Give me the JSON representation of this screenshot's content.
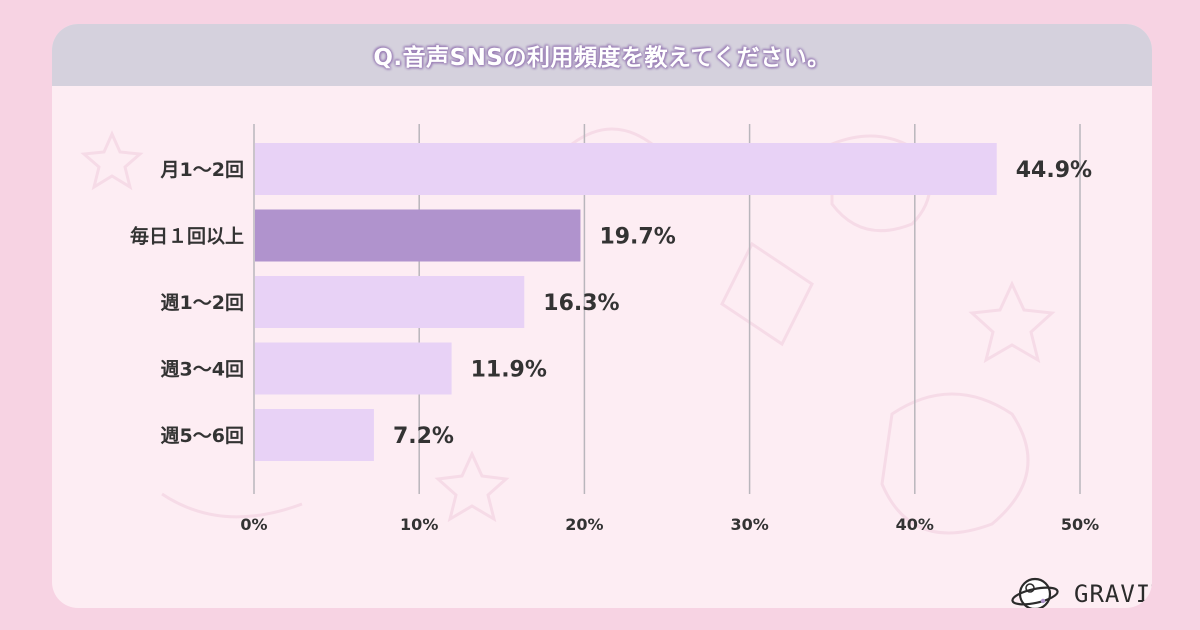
{
  "title": "Q.音声SNSの利用頻度を教えてください。",
  "logo_text": "GRAVITY",
  "colors": {
    "background": "#f7d3e3",
    "card": "#fdedf3",
    "title_bar": "#d5d1dd",
    "bar": "#e8d2f6",
    "bar_highlight": "#b093cd",
    "grid": "#b9b6bc"
  },
  "chart_data": {
    "type": "bar",
    "orientation": "horizontal",
    "title": "Q.音声SNSの利用頻度を教えてください。",
    "categories": [
      "月1～2回",
      "毎日１回以上",
      "週1～2回",
      "週3～4回",
      "週5～6回"
    ],
    "values": [
      44.9,
      19.7,
      16.3,
      11.9,
      7.2
    ],
    "value_labels": [
      "44.9%",
      "19.7%",
      "16.3%",
      "11.9%",
      "7.2%"
    ],
    "highlight_index": 1,
    "xlim": [
      0,
      50
    ],
    "x_ticks": [
      0,
      10,
      20,
      30,
      40,
      50
    ],
    "x_tick_labels": [
      "0%",
      "10%",
      "20%",
      "30%",
      "40%",
      "50%"
    ],
    "grid": "vertical",
    "legend": "none"
  }
}
